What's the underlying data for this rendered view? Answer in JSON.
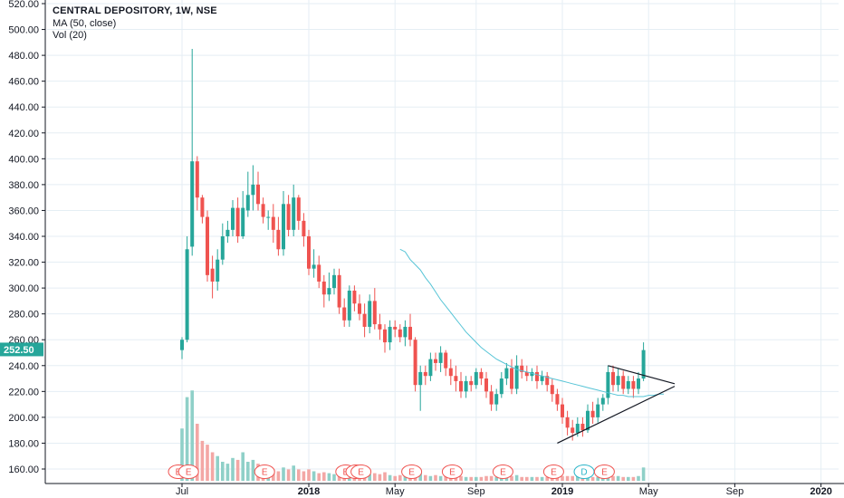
{
  "legend": {
    "title": "CENTRAL DEPOSITORY, 1W, NSE",
    "ma": "MA (50, close)",
    "vol": "Vol (20)"
  },
  "colors": {
    "up": "#26a69a",
    "down": "#ef5350",
    "vol_up": "#8fd0c8",
    "vol_down": "#f3a7a5",
    "ma": "#56c4d6",
    "grid": "#e5eef4",
    "axis": "#131722",
    "price_label_bg": "#26a69a"
  },
  "chart_data": {
    "type": "candlestick",
    "title": "CENTRAL DEPOSITORY, 1W, NSE",
    "y_axis": {
      "range": [
        145,
        525
      ],
      "ticks": [
        "160.00",
        "180.00",
        "200.00",
        "220.00",
        "240.00",
        "260.00",
        "280.00",
        "300.00",
        "320.00",
        "340.00",
        "360.00",
        "380.00",
        "400.00",
        "420.00",
        "440.00",
        "460.00",
        "480.00",
        "500.00",
        "520.00"
      ]
    },
    "x_axis": {
      "ticks": [
        {
          "label": "Jul",
          "i": 0,
          "bold": false
        },
        {
          "label": "2018",
          "i": 25,
          "bold": true
        },
        {
          "label": "May",
          "i": 42,
          "bold": false
        },
        {
          "label": "Sep",
          "i": 58,
          "bold": false
        },
        {
          "label": "2019",
          "i": 75,
          "bold": true
        },
        {
          "label": "May",
          "i": 92,
          "bold": false
        },
        {
          "label": "Sep",
          "i": 109,
          "bold": false
        },
        {
          "label": "2020",
          "i": 126,
          "bold": true
        }
      ]
    },
    "last_price": "252.50",
    "candles": [
      [
        252,
        260,
        245,
        262,
        55
      ],
      [
        260,
        330,
        258,
        340,
        88
      ],
      [
        332,
        398,
        325,
        485,
        95
      ],
      [
        398,
        370,
        360,
        402,
        60
      ],
      [
        370,
        355,
        350,
        372,
        42
      ],
      [
        355,
        310,
        305,
        360,
        38
      ],
      [
        315,
        305,
        292,
        325,
        30
      ],
      [
        305,
        322,
        298,
        330,
        26
      ],
      [
        322,
        340,
        318,
        350,
        20
      ],
      [
        340,
        345,
        335,
        352,
        18
      ],
      [
        345,
        362,
        340,
        368,
        24
      ],
      [
        362,
        340,
        335,
        370,
        22
      ],
      [
        340,
        362,
        338,
        375,
        30
      ],
      [
        360,
        372,
        355,
        390,
        20
      ],
      [
        372,
        380,
        360,
        395,
        22
      ],
      [
        380,
        365,
        360,
        390,
        18
      ],
      [
        365,
        355,
        350,
        370,
        14
      ],
      [
        355,
        355,
        345,
        360,
        12
      ],
      [
        355,
        345,
        335,
        365,
        12
      ],
      [
        345,
        330,
        325,
        355,
        10
      ],
      [
        330,
        365,
        325,
        375,
        14
      ],
      [
        365,
        345,
        340,
        372,
        12
      ],
      [
        345,
        370,
        340,
        380,
        16
      ],
      [
        370,
        352,
        345,
        372,
        12
      ],
      [
        352,
        340,
        332,
        358,
        10
      ],
      [
        340,
        315,
        310,
        345,
        12
      ],
      [
        315,
        318,
        308,
        330,
        10
      ],
      [
        318,
        305,
        300,
        325,
        8
      ],
      [
        305,
        295,
        285,
        310,
        9
      ],
      [
        295,
        300,
        290,
        312,
        8
      ],
      [
        300,
        310,
        295,
        315,
        7
      ],
      [
        310,
        285,
        280,
        315,
        8
      ],
      [
        285,
        275,
        270,
        292,
        7
      ],
      [
        275,
        298,
        270,
        302,
        6
      ],
      [
        298,
        288,
        282,
        302,
        7
      ],
      [
        288,
        280,
        275,
        295,
        6
      ],
      [
        280,
        270,
        262,
        288,
        8
      ],
      [
        270,
        290,
        265,
        295,
        7
      ],
      [
        290,
        272,
        268,
        300,
        8
      ],
      [
        272,
        268,
        260,
        280,
        7
      ],
      [
        268,
        258,
        250,
        272,
        9
      ],
      [
        258,
        270,
        252,
        275,
        6
      ],
      [
        270,
        268,
        262,
        275,
        5
      ],
      [
        268,
        262,
        258,
        272,
        6
      ],
      [
        262,
        270,
        255,
        275,
        5
      ],
      [
        270,
        260,
        255,
        280,
        6
      ],
      [
        260,
        225,
        220,
        262,
        12
      ],
      [
        225,
        235,
        205,
        240,
        9
      ],
      [
        235,
        232,
        225,
        240,
        6
      ],
      [
        232,
        245,
        228,
        250,
        5
      ],
      [
        245,
        242,
        236,
        250,
        6
      ],
      [
        242,
        250,
        235,
        255,
        5
      ],
      [
        250,
        238,
        232,
        252,
        6
      ],
      [
        238,
        232,
        225,
        245,
        5
      ],
      [
        232,
        228,
        220,
        240,
        5
      ],
      [
        228,
        220,
        215,
        235,
        5
      ],
      [
        220,
        228,
        215,
        232,
        4
      ],
      [
        228,
        225,
        220,
        232,
        4
      ],
      [
        225,
        235,
        222,
        238,
        4
      ],
      [
        235,
        230,
        225,
        238,
        4
      ],
      [
        230,
        220,
        215,
        235,
        5
      ],
      [
        220,
        210,
        205,
        225,
        5
      ],
      [
        210,
        218,
        205,
        222,
        4
      ],
      [
        218,
        230,
        215,
        235,
        4
      ],
      [
        230,
        238,
        225,
        242,
        5
      ],
      [
        238,
        222,
        218,
        245,
        5
      ],
      [
        222,
        240,
        218,
        248,
        6
      ],
      [
        240,
        235,
        230,
        245,
        4
      ],
      [
        235,
        232,
        228,
        240,
        4
      ],
      [
        232,
        235,
        228,
        238,
        4
      ],
      [
        235,
        228,
        222,
        240,
        4
      ],
      [
        228,
        232,
        225,
        236,
        4
      ],
      [
        232,
        225,
        220,
        235,
        4
      ],
      [
        225,
        218,
        212,
        230,
        4
      ],
      [
        218,
        210,
        205,
        222,
        5
      ],
      [
        210,
        200,
        195,
        215,
        5
      ],
      [
        200,
        192,
        186,
        205,
        5
      ],
      [
        192,
        188,
        182,
        198,
        5
      ],
      [
        188,
        195,
        185,
        200,
        5
      ],
      [
        195,
        190,
        185,
        200,
        4
      ],
      [
        190,
        205,
        188,
        210,
        5
      ],
      [
        205,
        200,
        195,
        212,
        4
      ],
      [
        200,
        210,
        196,
        215,
        4
      ],
      [
        210,
        215,
        205,
        218,
        4
      ],
      [
        215,
        235,
        210,
        240,
        6
      ],
      [
        235,
        225,
        220,
        240,
        5
      ],
      [
        225,
        232,
        220,
        238,
        5
      ],
      [
        232,
        222,
        218,
        236,
        4
      ],
      [
        222,
        228,
        218,
        232,
        4
      ],
      [
        228,
        222,
        215,
        232,
        4
      ],
      [
        222,
        230,
        218,
        235,
        5
      ],
      [
        230,
        252,
        228,
        258,
        14
      ]
    ],
    "ma_start_index": 43,
    "ma": [
      330,
      328,
      322,
      318,
      314,
      308,
      303,
      297,
      291,
      286,
      281,
      276,
      271,
      266,
      262,
      258,
      254,
      251,
      248,
      245,
      243,
      241,
      239,
      237,
      236,
      235,
      234,
      233,
      232,
      231,
      230,
      229,
      228,
      227,
      226,
      225,
      224,
      223,
      222,
      221,
      220,
      219,
      218,
      217,
      217,
      216,
      216,
      216,
      216,
      217,
      217,
      218,
      218
    ],
    "events": [
      {
        "label": "E",
        "i": 0,
        "type": "E"
      },
      {
        "label": "E",
        "i": 2,
        "type": "E"
      },
      {
        "label": "E",
        "i": 17,
        "type": "E"
      },
      {
        "label": "E",
        "i": 33,
        "type": "E"
      },
      {
        "label": "E",
        "i": 35,
        "type": "E"
      },
      {
        "label": "E",
        "i": 36,
        "type": "E"
      },
      {
        "label": "E",
        "i": 46,
        "type": "E"
      },
      {
        "label": "E",
        "i": 54,
        "type": "E"
      },
      {
        "label": "E",
        "i": 64,
        "type": "E"
      },
      {
        "label": "E",
        "i": 74,
        "type": "E"
      },
      {
        "label": "D",
        "i": 80,
        "type": "D"
      },
      {
        "label": "E",
        "i": 84,
        "type": "E"
      }
    ],
    "triangle": {
      "upper": [
        [
          84,
          240
        ],
        [
          95,
          226
        ]
      ],
      "lower": [
        [
          74,
          180
        ],
        [
          95,
          224
        ]
      ]
    }
  }
}
